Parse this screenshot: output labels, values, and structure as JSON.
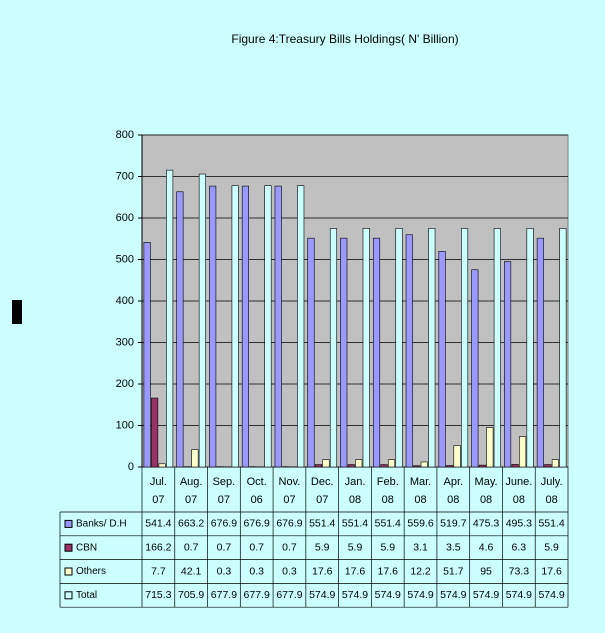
{
  "chart_data": {
    "type": "bar",
    "title": "Figure 4:Treasury Bills Holdings( N' Billion)",
    "categories": [
      "Jul. 07",
      "Aug. 07",
      "Sep. 07",
      "Oct. 06",
      "Nov. 07",
      "Dec. 07",
      "Jan. 08",
      "Feb. 08",
      "Mar. 08",
      "Apr. 08",
      "May. 08",
      "June. 08",
      "July. 08"
    ],
    "series": [
      {
        "name": "Banks/ D.H",
        "color": "#9999ff",
        "values": [
          541.4,
          663.2,
          676.9,
          676.9,
          676.9,
          551.4,
          551.4,
          551.4,
          559.6,
          519.7,
          475.3,
          495.3,
          551.4
        ]
      },
      {
        "name": "CBN",
        "color": "#993366",
        "values": [
          166.2,
          0.7,
          0.7,
          0.7,
          0.7,
          5.9,
          5.9,
          5.9,
          3.1,
          3.5,
          4.6,
          6.3,
          5.9
        ]
      },
      {
        "name": "Others",
        "color": "#ffffcc",
        "values": [
          7.7,
          42.1,
          0.3,
          0.3,
          0.3,
          17.6,
          17.6,
          17.6,
          12.2,
          51.7,
          95,
          73.3,
          17.6
        ]
      },
      {
        "name": "Total",
        "color": "#ccffff",
        "values": [
          715.3,
          705.9,
          677.9,
          677.9,
          677.9,
          574.9,
          574.9,
          574.9,
          574.9,
          574.9,
          574.9,
          574.9,
          574.9
        ]
      }
    ],
    "ylim": [
      0,
      800
    ],
    "yticks": [
      0,
      100,
      200,
      300,
      400,
      500,
      600,
      700,
      800
    ],
    "grid": true
  }
}
